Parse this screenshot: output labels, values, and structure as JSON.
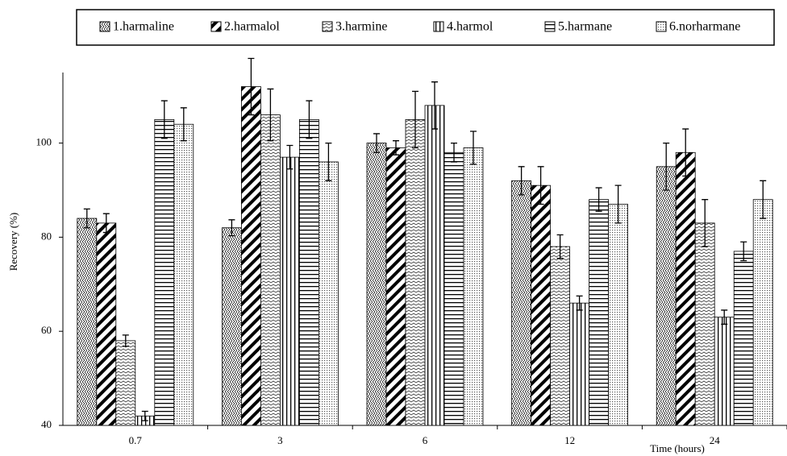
{
  "chart_data": {
    "type": "bar",
    "x_label": "Time (hours)",
    "y_label": "Recovery (%)",
    "categories": [
      "0.7",
      "3",
      "6",
      "12",
      "24"
    ],
    "series": [
      {
        "name": "1.harmaline",
        "pattern": "zigzag-diagonal",
        "values": [
          84,
          82,
          100,
          92,
          95
        ],
        "errors": [
          2,
          1.7,
          2,
          3,
          5
        ]
      },
      {
        "name": "2.harmalol",
        "pattern": "thick-diagonal",
        "values": [
          83,
          112,
          99,
          91,
          98
        ],
        "errors": [
          2,
          6,
          1.5,
          4,
          5
        ]
      },
      {
        "name": "3.harmine",
        "pattern": "wave",
        "values": [
          58,
          106,
          105,
          78,
          83
        ],
        "errors": [
          1.2,
          5.5,
          6,
          2.5,
          5
        ]
      },
      {
        "name": "4.harmol",
        "pattern": "vertical",
        "values": [
          42,
          97,
          108,
          66,
          63
        ],
        "errors": [
          1,
          2.5,
          5,
          1.5,
          1.5
        ]
      },
      {
        "name": "5.harmane",
        "pattern": "horizontal",
        "values": [
          105,
          105,
          98,
          88,
          77
        ],
        "errors": [
          4,
          4,
          2,
          2.5,
          2
        ]
      },
      {
        "name": "6.norharmane",
        "pattern": "dots",
        "values": [
          104,
          96,
          99,
          87,
          88
        ],
        "errors": [
          3.5,
          4,
          3.5,
          4,
          4
        ]
      }
    ],
    "ylim": [
      40,
      115
    ],
    "yticks": [
      40,
      60,
      80,
      100
    ],
    "legend": "top",
    "color": "#000000"
  }
}
